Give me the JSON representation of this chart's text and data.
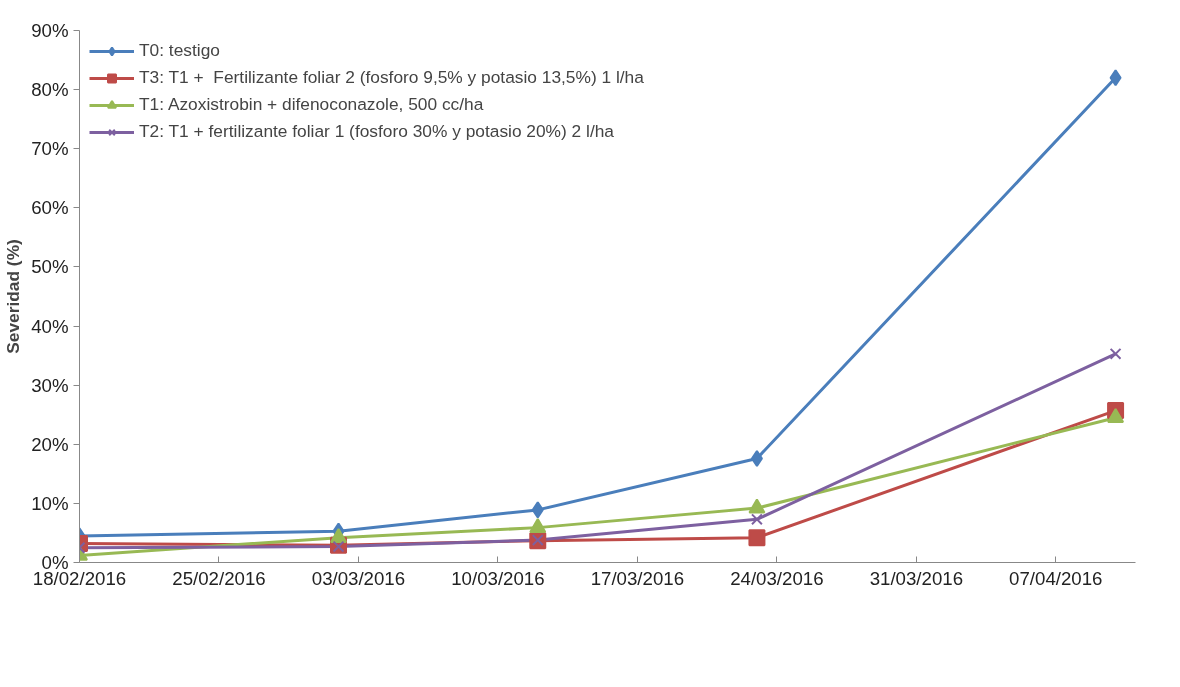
{
  "chart_data": {
    "type": "line",
    "ylabel": "Severidad (%)",
    "x": [
      "2016-02-18",
      "2016-03-02",
      "2016-03-12",
      "2016-03-23",
      "2016-04-10"
    ],
    "series": [
      {
        "name": "T0: testigo",
        "color": "#4a7ebb",
        "marker": "diamond",
        "values": [
          4.5,
          5.3,
          8.9,
          17.6,
          82.0
        ]
      },
      {
        "name": "T3: T1 +  Fertilizante foliar 2 (fosforo 9,5% y potasio 13,5%) 1 l/ha",
        "color": "#be4b48",
        "marker": "square",
        "values": [
          3.2,
          2.9,
          3.7,
          4.2,
          25.7
        ]
      },
      {
        "name": "T1: Azoxistrobin + difenoconazole, 500 cc/ha",
        "color": "#98b954",
        "marker": "triangle",
        "values": [
          1.2,
          4.2,
          5.9,
          9.2,
          24.5
        ]
      },
      {
        "name": "T2: T1 + fertilizante foliar 1 (fosforo 30% y potasio 20%) 2 l/ha",
        "color": "#7d60a0",
        "marker": "cross",
        "values": [
          2.5,
          2.7,
          3.8,
          7.3,
          35.3
        ]
      }
    ],
    "xlim": [
      "2016-02-18",
      "2016-04-11"
    ],
    "xticks": [
      {
        "value": "2016-02-18",
        "label": "18/02/2016"
      },
      {
        "value": "2016-02-25",
        "label": "25/02/2016"
      },
      {
        "value": "2016-03-03",
        "label": "03/03/2016"
      },
      {
        "value": "2016-03-10",
        "label": "10/03/2016"
      },
      {
        "value": "2016-03-17",
        "label": "17/03/2016"
      },
      {
        "value": "2016-03-24",
        "label": "24/03/2016"
      },
      {
        "value": "2016-03-31",
        "label": "31/03/2016"
      },
      {
        "value": "2016-04-07",
        "label": "07/04/2016"
      }
    ],
    "ylim": [
      0,
      90
    ],
    "yticks": [
      {
        "value": 0,
        "label": "0%"
      },
      {
        "value": 10,
        "label": "10%"
      },
      {
        "value": 20,
        "label": "20%"
      },
      {
        "value": 30,
        "label": "30%"
      },
      {
        "value": 40,
        "label": "40%"
      },
      {
        "value": 50,
        "label": "50%"
      },
      {
        "value": 60,
        "label": "60%"
      },
      {
        "value": 70,
        "label": "70%"
      },
      {
        "value": 80,
        "label": "80%"
      },
      {
        "value": 90,
        "label": "90%"
      }
    ],
    "grid": false,
    "legend": "top left",
    "line_style": "solid"
  }
}
